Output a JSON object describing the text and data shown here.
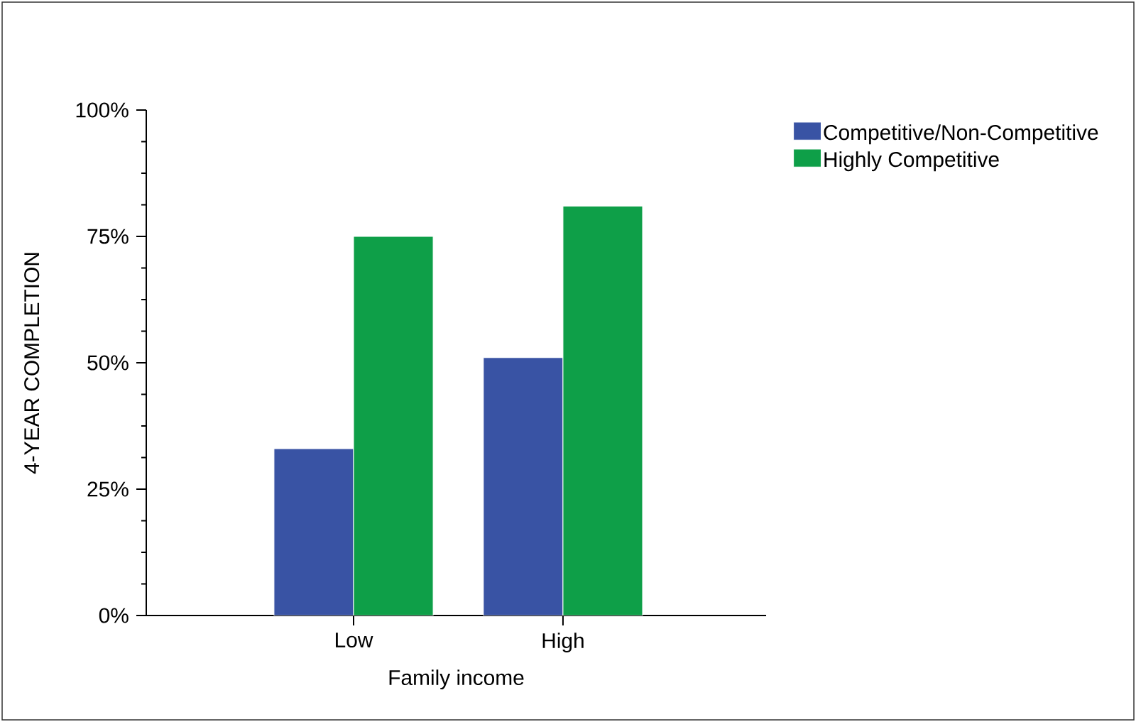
{
  "chart_data": {
    "type": "bar",
    "xlabel": "Family income",
    "ylabel": "4-YEAR COMPLETION",
    "categories": [
      "Low",
      "High"
    ],
    "series": [
      {
        "name": "Competitive/Non-Competitive",
        "color": "#3953a4",
        "values": [
          33,
          51
        ]
      },
      {
        "name": "Highly Competitive",
        "color": "#0e9f48",
        "values": [
          75,
          81
        ]
      }
    ],
    "ylim": [
      0,
      100
    ],
    "yticks": [
      {
        "value": 0,
        "label": "0%"
      },
      {
        "value": 25,
        "label": "25%"
      },
      {
        "value": 50,
        "label": "50%"
      },
      {
        "value": 75,
        "label": "75%"
      },
      {
        "value": 100,
        "label": "100%"
      }
    ],
    "legend": "top right",
    "grid": false
  }
}
